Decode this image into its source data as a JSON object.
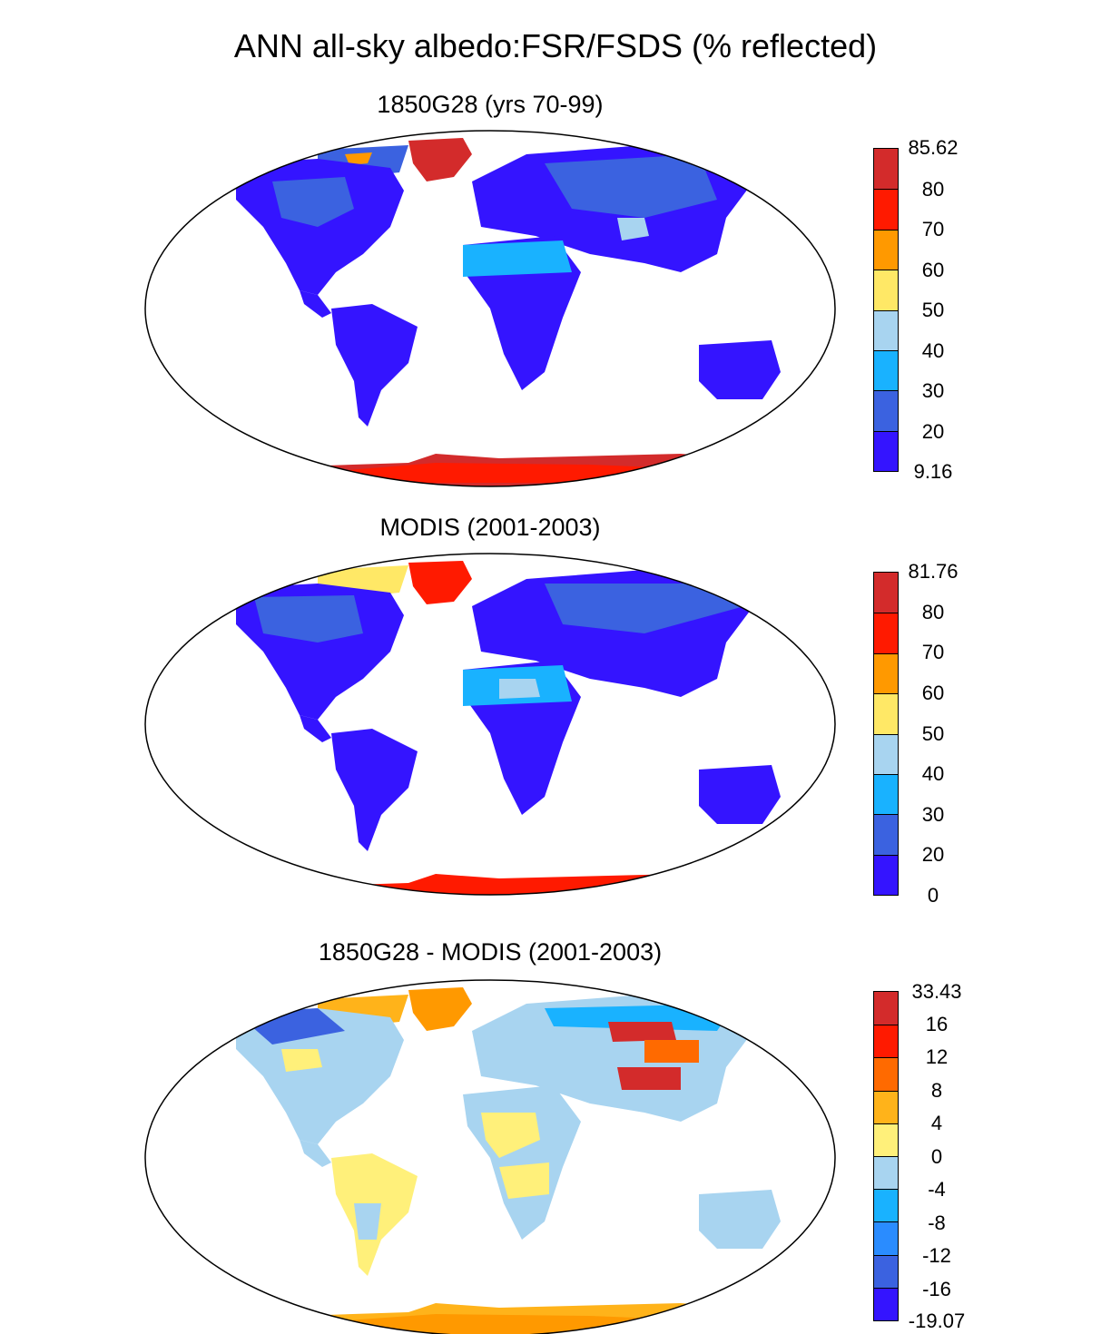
{
  "title": "ANN all-sky albedo:FSR/FSDS (% reflected)",
  "panels": [
    {
      "title": "1850G28 (yrs 70-99)",
      "colorbar": {
        "labels": [
          "85.62",
          "80",
          "70",
          "60",
          "50",
          "40",
          "30",
          "20",
          "9.16"
        ],
        "colors": [
          "#d32b2b",
          "#ff1a00",
          "#ff9900",
          "#ffe866",
          "#a8d4f0",
          "#19b2ff",
          "#3b62e0",
          "#3414ff"
        ]
      }
    },
    {
      "title": "MODIS (2001-2003)",
      "colorbar": {
        "labels": [
          "81.76",
          "80",
          "70",
          "60",
          "50",
          "40",
          "30",
          "20",
          "0"
        ],
        "colors": [
          "#d32b2b",
          "#ff1a00",
          "#ff9900",
          "#ffe866",
          "#a8d4f0",
          "#19b2ff",
          "#3b62e0",
          "#3414ff"
        ]
      }
    },
    {
      "title": "1850G28 - MODIS (2001-2003)",
      "colorbar": {
        "labels": [
          "33.43",
          "16",
          "12",
          "8",
          "4",
          "0",
          "-4",
          "-8",
          "-12",
          "-16",
          "-19.07"
        ],
        "colors": [
          "#d32b2b",
          "#ff1a00",
          "#ff6a00",
          "#ffb31a",
          "#fff07a",
          "#a8d4f0",
          "#19b2ff",
          "#2a8cff",
          "#3b62e0",
          "#3414ff"
        ]
      }
    }
  ]
}
